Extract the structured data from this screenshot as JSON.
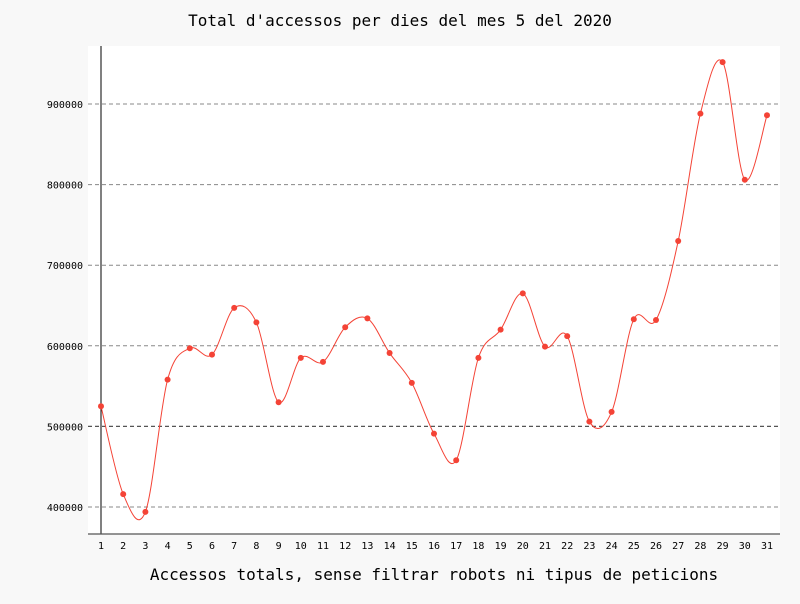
{
  "chart_data": {
    "type": "line",
    "title": "Total d'accessos per dies del mes 5 del 2020",
    "xlabel": "Accessos totals, sense filtrar robots ni tipus de peticions",
    "ylabel": "",
    "categories": [
      "1",
      "2",
      "3",
      "4",
      "5",
      "6",
      "7",
      "8",
      "9",
      "10",
      "11",
      "12",
      "13",
      "14",
      "15",
      "16",
      "17",
      "18",
      "19",
      "20",
      "21",
      "22",
      "23",
      "24",
      "25",
      "26",
      "27",
      "28",
      "29",
      "30",
      "31"
    ],
    "values": [
      525000,
      416000,
      394000,
      558000,
      597000,
      589000,
      647000,
      629000,
      530000,
      585000,
      580000,
      623000,
      634000,
      591000,
      554000,
      491000,
      458000,
      585000,
      620000,
      665000,
      599000,
      612000,
      506000,
      518000,
      633000,
      632000,
      730000,
      888000,
      952000,
      806000,
      886000
    ],
    "yticks": [
      400000,
      500000,
      600000,
      700000,
      800000,
      900000
    ],
    "ylim": [
      367000,
      975000
    ],
    "grid": true,
    "interpolation": "smooth",
    "colors": {
      "line": "#f44336",
      "point": "#f44336",
      "grid": "#888888"
    }
  }
}
